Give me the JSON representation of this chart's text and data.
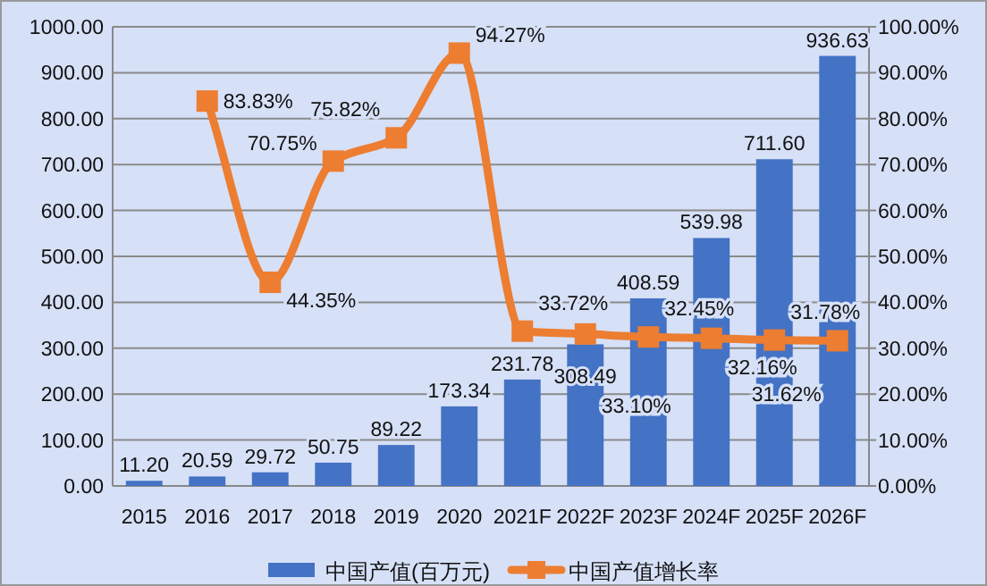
{
  "chart_data": {
    "type": "bar",
    "categories": [
      "2015",
      "2016",
      "2017",
      "2018",
      "2019",
      "2020",
      "2021F",
      "2022F",
      "2023F",
      "2024F",
      "2025F",
      "2026F"
    ],
    "series": [
      {
        "name": "中国产值(百万元)",
        "color": "#4472c4",
        "values": [
          11.2,
          20.59,
          29.72,
          50.75,
          89.22,
          173.34,
          231.78,
          308.49,
          408.59,
          539.98,
          711.6,
          936.63
        ],
        "value_labels": [
          "11.20",
          "20.59",
          "29.72",
          "50.75",
          "89.22",
          "173.34",
          "231.78",
          "308.49",
          "408.59",
          "539.98",
          "711.60",
          "936.63"
        ]
      },
      {
        "name": "中国产值增长率",
        "type": "line",
        "axis": "y2",
        "color": "#ed7d31",
        "marker": "square",
        "values": [
          null,
          83.83,
          44.35,
          70.75,
          75.82,
          94.27,
          33.72,
          33.1,
          32.45,
          32.16,
          31.78,
          31.62
        ],
        "value_labels": [
          null,
          "83.83%",
          "44.35%",
          "70.75%",
          "75.82%",
          "94.27%",
          "33.72%",
          "33.10%",
          "32.45%",
          "32.16%",
          "31.78%",
          "31.62%"
        ]
      }
    ],
    "ylim": [
      0,
      1000
    ],
    "yticks": [
      {
        "value": 0,
        "label": "0.00"
      },
      {
        "value": 100,
        "label": "100.00"
      },
      {
        "value": 200,
        "label": "200.00"
      },
      {
        "value": 300,
        "label": "300.00"
      },
      {
        "value": 400,
        "label": "400.00"
      },
      {
        "value": 500,
        "label": "500.00"
      },
      {
        "value": 600,
        "label": "600.00"
      },
      {
        "value": 700,
        "label": "700.00"
      },
      {
        "value": 800,
        "label": "800.00"
      },
      {
        "value": 900,
        "label": "900.00"
      },
      {
        "value": 1000,
        "label": "1000.00"
      }
    ],
    "y2lim": [
      0,
      100
    ],
    "y2ticks": [
      {
        "value": 0,
        "label": "0.00%"
      },
      {
        "value": 10,
        "label": "10.00%"
      },
      {
        "value": 20,
        "label": "20.00%"
      },
      {
        "value": 30,
        "label": "30.00%"
      },
      {
        "value": 40,
        "label": "40.00%"
      },
      {
        "value": 50,
        "label": "50.00%"
      },
      {
        "value": 60,
        "label": "60.00%"
      },
      {
        "value": 70,
        "label": "70.00%"
      },
      {
        "value": 80,
        "label": "80.00%"
      },
      {
        "value": 90,
        "label": "90.00%"
      },
      {
        "value": 100,
        "label": "100.00%"
      }
    ],
    "grid": "y",
    "legend": "bottom"
  }
}
